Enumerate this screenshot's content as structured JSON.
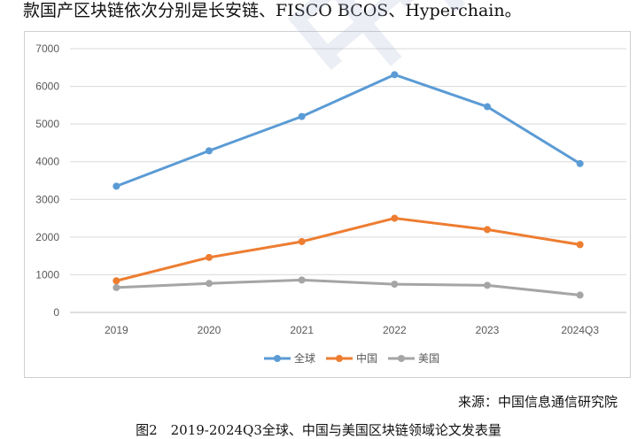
{
  "intro_text": "款国产区块链依次分别是长安链、FISCO BCOS、Hyperchain。",
  "source": "来源：中国信息通信研究院",
  "caption": "图2　2019-2024Q3全球、中国与美国区块链领域论文发表量",
  "watermark": "中国信通院",
  "chart_data": {
    "type": "line",
    "title": "",
    "xlabel": "",
    "ylabel": "",
    "categories": [
      "2019",
      "2020",
      "2021",
      "2022",
      "2023",
      "2024Q3"
    ],
    "ylim": [
      0,
      7000
    ],
    "yticks": [
      0,
      1000,
      2000,
      3000,
      4000,
      5000,
      6000,
      7000
    ],
    "grid": true,
    "legend_position": "bottom",
    "series": [
      {
        "name": "全球",
        "color": "#5b9bd5",
        "values": [
          3350,
          4290,
          5200,
          6310,
          5460,
          3950
        ]
      },
      {
        "name": "中国",
        "color": "#ed7d31",
        "values": [
          840,
          1460,
          1880,
          2500,
          2200,
          1800
        ]
      },
      {
        "name": "美国",
        "color": "#a5a5a5",
        "values": [
          660,
          770,
          860,
          750,
          720,
          460
        ]
      }
    ]
  }
}
